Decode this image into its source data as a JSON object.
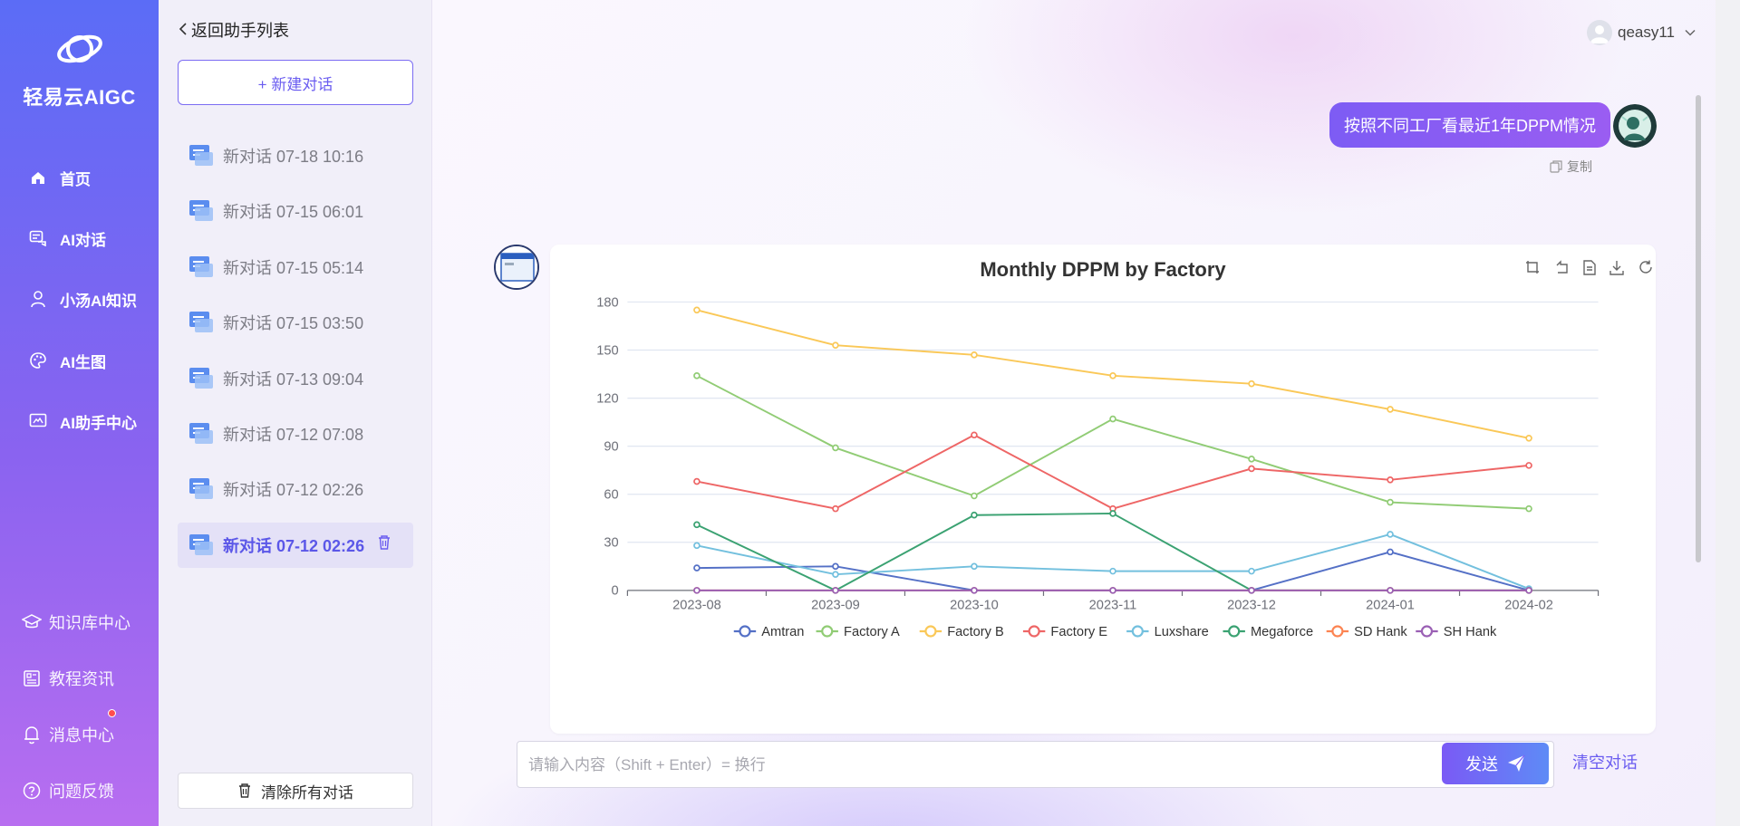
{
  "app": {
    "name": "轻易云AIGC"
  },
  "nav": {
    "items": [
      {
        "label": "首页",
        "icon": "home-icon"
      },
      {
        "label": "AI对话",
        "icon": "chat-icon"
      },
      {
        "label": "小汤AI知识",
        "icon": "person-icon"
      },
      {
        "label": "AI生图",
        "icon": "palette-icon"
      },
      {
        "label": "AI助手中心",
        "icon": "assistant-icon"
      }
    ],
    "bottom": [
      {
        "label": "知识库中心",
        "icon": "graduation-cap-icon"
      },
      {
        "label": "教程资讯",
        "icon": "news-icon"
      },
      {
        "label": "消息中心",
        "icon": "bell-icon"
      },
      {
        "label": "问题反馈",
        "icon": "help-icon"
      }
    ]
  },
  "sidebar": {
    "back_label": "返回助手列表",
    "new_chat_label": "+ 新建对话",
    "conversations": [
      "新对话 07-18 10:16",
      "新对话 07-15 06:01",
      "新对话 07-15 05:14",
      "新对话 07-15 03:50",
      "新对话 07-13 09:04",
      "新对话 07-12 07:08",
      "新对话 07-12 02:26",
      "新对话 07-12 02:26"
    ],
    "clear_all_label": "清除所有对话"
  },
  "header": {
    "username": "qeasy11"
  },
  "chat": {
    "user_message": "按照不同工厂看最近1年DPPM情况",
    "copy_label": "复制",
    "input_placeholder": "请输入内容（Shift + Enter）= 换行",
    "send_label": "发送",
    "clear_label": "清空对话"
  },
  "chart_data": {
    "type": "line",
    "title": "Monthly DPPM by Factory",
    "categories": [
      "2023-08",
      "2023-09",
      "2023-10",
      "2023-11",
      "2023-12",
      "2024-01",
      "2024-02"
    ],
    "yticks": [
      0,
      30,
      60,
      90,
      120,
      150,
      180
    ],
    "ylim": [
      0,
      180
    ],
    "grid": true,
    "legend_position": "bottom",
    "series": [
      {
        "name": "Amtran",
        "color": "#5470c6",
        "values": [
          14,
          15,
          0,
          0,
          0,
          24,
          0
        ]
      },
      {
        "name": "Factory A",
        "color": "#91cc75",
        "values": [
          134,
          89,
          59,
          107,
          82,
          55,
          51
        ]
      },
      {
        "name": "Factory B",
        "color": "#fac858",
        "values": [
          175,
          153,
          147,
          134,
          129,
          113,
          95
        ]
      },
      {
        "name": "Factory E",
        "color": "#ee6666",
        "values": [
          68,
          51,
          97,
          51,
          76,
          69,
          78
        ]
      },
      {
        "name": "Luxshare",
        "color": "#73c0de",
        "values": [
          28,
          10,
          15,
          12,
          12,
          35,
          1
        ]
      },
      {
        "name": "Megaforce",
        "color": "#3ba272",
        "values": [
          41,
          0,
          47,
          48,
          0,
          0,
          0
        ]
      },
      {
        "name": "SD Hank",
        "color": "#fc8452",
        "values": [
          0,
          0,
          0,
          0,
          0,
          0,
          0
        ]
      },
      {
        "name": "SH Hank",
        "color": "#9a60b4",
        "values": [
          0,
          0,
          0,
          0,
          0,
          0,
          0
        ]
      }
    ],
    "toolbox": [
      "crop-icon",
      "undo-icon",
      "data-view-icon",
      "download-icon",
      "refresh-icon"
    ]
  },
  "colors": {
    "accent": "#6a5cf0",
    "nav_gradient_top": "#5b6cf6",
    "nav_gradient_bottom": "#b86ef0",
    "bubble": "#8b5cf6",
    "notification_dot": "#ff4d4f"
  }
}
